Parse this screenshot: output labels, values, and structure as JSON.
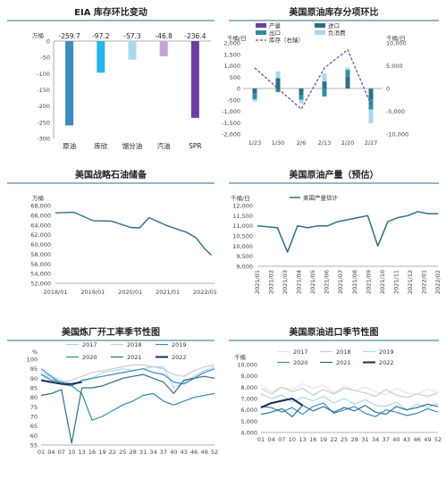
{
  "colors": {
    "title_rule": "#2e6f86",
    "axis": "#999999",
    "grid": "#d9d9d9"
  },
  "chart_data": [
    {
      "type": "bar",
      "title": "EIA 库存环比变动",
      "unit": "万桶",
      "categories": [
        "原油",
        "库欣",
        "馏分油",
        "汽油",
        "SPR"
      ],
      "values": [
        -259.7,
        -97.2,
        -57.3,
        -46.8,
        -236.4
      ],
      "value_labels": [
        "-259.7",
        "-97.2",
        "-57.3",
        "-46.8",
        "-236.4"
      ],
      "colors": [
        "#3b8bbf",
        "#26b5e6",
        "#a9d8ec",
        "#c9a3d6",
        "#6a3fa0"
      ],
      "ylim": [
        -300,
        0
      ],
      "yticks": [
        "0",
        "-50",
        "-100",
        "-150",
        "-200",
        "-250",
        "-300"
      ]
    },
    {
      "type": "bar",
      "title": "美国原油库存分项环比",
      "unit_left": "千桶/日",
      "unit_right": "千桶/日",
      "categories": [
        "1/23",
        "1/30",
        "2/6",
        "2/13",
        "2/20",
        "2/27"
      ],
      "ylim": [
        -2000,
        2000
      ],
      "ylim_right": [
        -10000,
        10000
      ],
      "yticks": [
        "2,000",
        "1,500",
        "1,000",
        "500",
        "0",
        "-500",
        "-1,000",
        "-1,500",
        "-2,000"
      ],
      "yticks_right": [
        "10,000",
        "5,000",
        "0",
        "-5,000",
        "-10,000"
      ],
      "legend": [
        "产量",
        "进口",
        "出口",
        "负消费",
        "库存（右轴）"
      ],
      "series": [
        {
          "name": "产量",
          "color": "#6a3fa0",
          "values": [
            -20,
            -10,
            0,
            10,
            20,
            -30
          ]
        },
        {
          "name": "进口",
          "color": "#2e6f86",
          "values": [
            -200,
            450,
            -300,
            300,
            500,
            -450
          ]
        },
        {
          "name": "出口",
          "color": "#2e8fa8",
          "values": [
            -250,
            -150,
            -200,
            -350,
            300,
            -450
          ]
        },
        {
          "name": "负消费",
          "color": "#a9d8ec",
          "values": [
            -100,
            300,
            -150,
            350,
            100,
            -600
          ]
        },
        {
          "name": "库存（右轴）",
          "color": "#6a3fa0",
          "type": "line",
          "axis": "right",
          "values": [
            4500,
            0,
            -4500,
            4500,
            8500,
            -3500
          ]
        }
      ]
    },
    {
      "type": "line",
      "title": "美国战略石油储备",
      "unit": "万桶",
      "color": "#2e6f86",
      "x": [
        "2018/01",
        "2018/07",
        "2019/01",
        "2019/07",
        "2020/01",
        "2020/04",
        "2020/07",
        "2021/01",
        "2021/07",
        "2021/10",
        "2022/01",
        "2022/03"
      ],
      "values": [
        66500,
        66600,
        64900,
        64800,
        63500,
        63400,
        65500,
        63800,
        62500,
        61400,
        59000,
        57800
      ],
      "ylim": [
        52000,
        68000
      ],
      "yticks": [
        "68,000",
        "66,000",
        "64,000",
        "62,000",
        "60,000",
        "58,000",
        "56,000",
        "54,000",
        "52,000"
      ],
      "xticks": [
        "2018/01",
        "2019/01",
        "2020/01",
        "2021/01",
        "2022/01"
      ]
    },
    {
      "type": "line",
      "title": "美国原油产量（预估）",
      "unit": "千桶/日",
      "series_name": "美国产量估计",
      "color": "#2e6f86",
      "x": [
        "2021/01",
        "2021/01",
        "2021/02",
        "2021/02",
        "2021/02",
        "2021/03",
        "2021/04",
        "2021/05",
        "2021/06",
        "2021/07",
        "2021/08",
        "2021/08",
        "2021/09",
        "2021/09",
        "2021/10",
        "2021/11",
        "2021/12",
        "2022/01",
        "2022/02"
      ],
      "values": [
        11000,
        10950,
        10900,
        9700,
        11000,
        10900,
        11000,
        11000,
        11200,
        11300,
        11400,
        11500,
        10000,
        11200,
        11400,
        11500,
        11700,
        11600,
        11600
      ],
      "ylim": [
        9000,
        12000
      ],
      "yticks": [
        "12,000",
        "11,500",
        "11,000",
        "10,500",
        "10,000",
        "9,500",
        "9,000"
      ],
      "xticks": [
        "2021/01",
        "2021/02",
        "2021/03",
        "2021/04",
        "2021/05",
        "2021/06",
        "2021/07",
        "2021/08",
        "2021/09",
        "2021/10",
        "2021/11",
        "2021/12",
        "2022/01",
        "2022/02"
      ]
    },
    {
      "type": "line",
      "title": "美国炼厂开工率季节性图",
      "unit": "%",
      "ylim": [
        55,
        100
      ],
      "yticks": [
        "100",
        "95",
        "90",
        "85",
        "80",
        "75",
        "70",
        "65",
        "60",
        "55"
      ],
      "xticks": [
        "01",
        "04",
        "07",
        "10",
        "13",
        "16",
        "19",
        "22",
        "25",
        "28",
        "31",
        "34",
        "37",
        "40",
        "43",
        "46",
        "49",
        "52"
      ],
      "series": [
        {
          "name": "2017",
          "color": "#a9d8ec",
          "values": [
            93,
            91,
            89,
            87,
            88,
            90,
            93,
            94,
            95,
            94,
            95,
            96,
            96,
            85,
            88,
            91,
            94,
            96
          ]
        },
        {
          "name": "2018",
          "color": "#c5cdd3",
          "values": [
            92,
            90,
            88,
            89,
            91,
            93,
            94,
            95,
            96,
            97,
            97,
            96,
            95,
            92,
            91,
            94,
            96,
            97
          ]
        },
        {
          "name": "2019",
          "color": "#3b8bbf",
          "values": [
            95,
            91,
            87,
            86,
            89,
            90,
            91,
            92,
            93,
            94,
            95,
            93,
            92,
            88,
            87,
            90,
            93,
            95
          ]
        },
        {
          "name": "2020",
          "color": "#2e8fa8",
          "values": [
            92,
            89,
            88,
            86,
            82,
            68,
            70,
            73,
            76,
            78,
            81,
            82,
            78,
            76,
            78,
            80,
            81,
            82
          ]
        },
        {
          "name": "2021",
          "color": "#2e6f86",
          "values": [
            81,
            82,
            84,
            56,
            85,
            85,
            86,
            88,
            90,
            91,
            92,
            90,
            88,
            82,
            89,
            90,
            91,
            90
          ]
        },
        {
          "name": "2022",
          "color": "#162e5c",
          "values": [
            89,
            88,
            87,
            87,
            88
          ]
        }
      ]
    },
    {
      "type": "line",
      "title": "美国原油进口季节性图",
      "unit": "千桶",
      "ylim": [
        4000,
        10000
      ],
      "yticks": [
        "10,000",
        "9,000",
        "8,000",
        "7,000",
        "6,000",
        "5,000",
        "4,000"
      ],
      "xticks": [
        "01",
        "04",
        "07",
        "10",
        "13",
        "16",
        "19",
        "22",
        "25",
        "28",
        "31",
        "34",
        "37",
        "40",
        "43",
        "46",
        "49",
        "52"
      ],
      "series": [
        {
          "name": "2017",
          "color": "#e0e6ea",
          "values": [
            8200,
            7600,
            8000,
            7800,
            8300,
            7900,
            8200,
            7500,
            8100,
            7700,
            8000,
            7600,
            7300,
            7900,
            7500,
            7400,
            7800,
            7600
          ]
        },
        {
          "name": "2018",
          "color": "#c5cdd3",
          "values": [
            7900,
            7400,
            8000,
            7600,
            7900,
            7300,
            7800,
            7400,
            7900,
            7700,
            7500,
            7200,
            7800,
            7300,
            7100,
            7400,
            7200,
            7500
          ]
        },
        {
          "name": "2019",
          "color": "#a9d8ec",
          "values": [
            7400,
            7000,
            7300,
            6700,
            7100,
            6800,
            7200,
            6600,
            7000,
            6500,
            6900,
            6400,
            6300,
            6700,
            6000,
            6500,
            6200,
            6600
          ]
        },
        {
          "name": "2020",
          "color": "#3b8bbf",
          "values": [
            6300,
            6200,
            5800,
            6200,
            5600,
            6300,
            6600,
            5700,
            6000,
            6300,
            5700,
            5400,
            6000,
            5800,
            5500,
            5700,
            6100,
            5800
          ]
        },
        {
          "name": "2021",
          "color": "#2e6f86",
          "values": [
            5600,
            5800,
            6100,
            5400,
            6400,
            5900,
            6300,
            5800,
            6200,
            5900,
            6400,
            5800,
            5600,
            6300,
            6000,
            6200,
            6500,
            6300
          ]
        },
        {
          "name": "2022",
          "color": "#162e5c",
          "values": [
            6200,
            6600,
            6800,
            7000,
            6400
          ]
        }
      ]
    }
  ]
}
